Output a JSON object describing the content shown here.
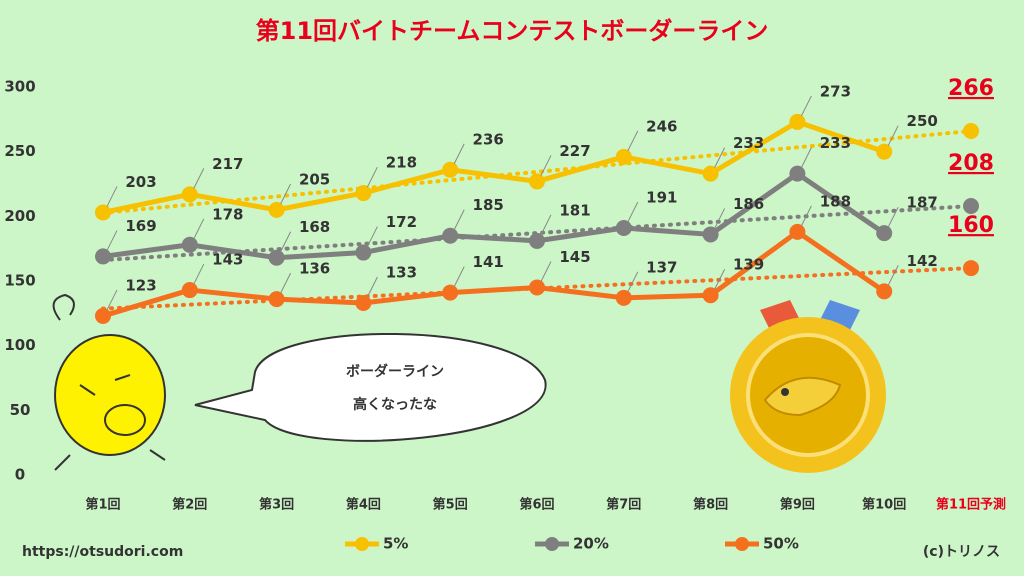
{
  "chart_data": {
    "type": "line",
    "title": "第11回バイトチームコンテストボーダーライン",
    "categories": [
      "第1回",
      "第2回",
      "第3回",
      "第4回",
      "第5回",
      "第6回",
      "第7回",
      "第8回",
      "第9回",
      "第10回",
      "第11回予測"
    ],
    "series": [
      {
        "name": "5%",
        "color": "#f7c000",
        "values": [
          203,
          217,
          205,
          218,
          236,
          227,
          246,
          233,
          273,
          250,
          null
        ],
        "prediction": 266
      },
      {
        "name": "20%",
        "color": "#7f7f7f",
        "values": [
          169,
          178,
          168,
          172,
          185,
          181,
          191,
          186,
          233,
          187,
          null
        ],
        "prediction": 208
      },
      {
        "name": "50%",
        "color": "#f4701e",
        "values": [
          123,
          143,
          136,
          133,
          141,
          145,
          137,
          139,
          188,
          142,
          null
        ],
        "prediction": 160
      }
    ],
    "ylim": [
      0,
      300
    ],
    "yticks": [
      0,
      50,
      100,
      150,
      200,
      250,
      300
    ],
    "grid": false,
    "legend": "bottom",
    "bubble": [
      "ボーダーライン",
      "高くなったな"
    ],
    "url": "https://otsudori.com",
    "copyright": "(c)トリノス"
  }
}
